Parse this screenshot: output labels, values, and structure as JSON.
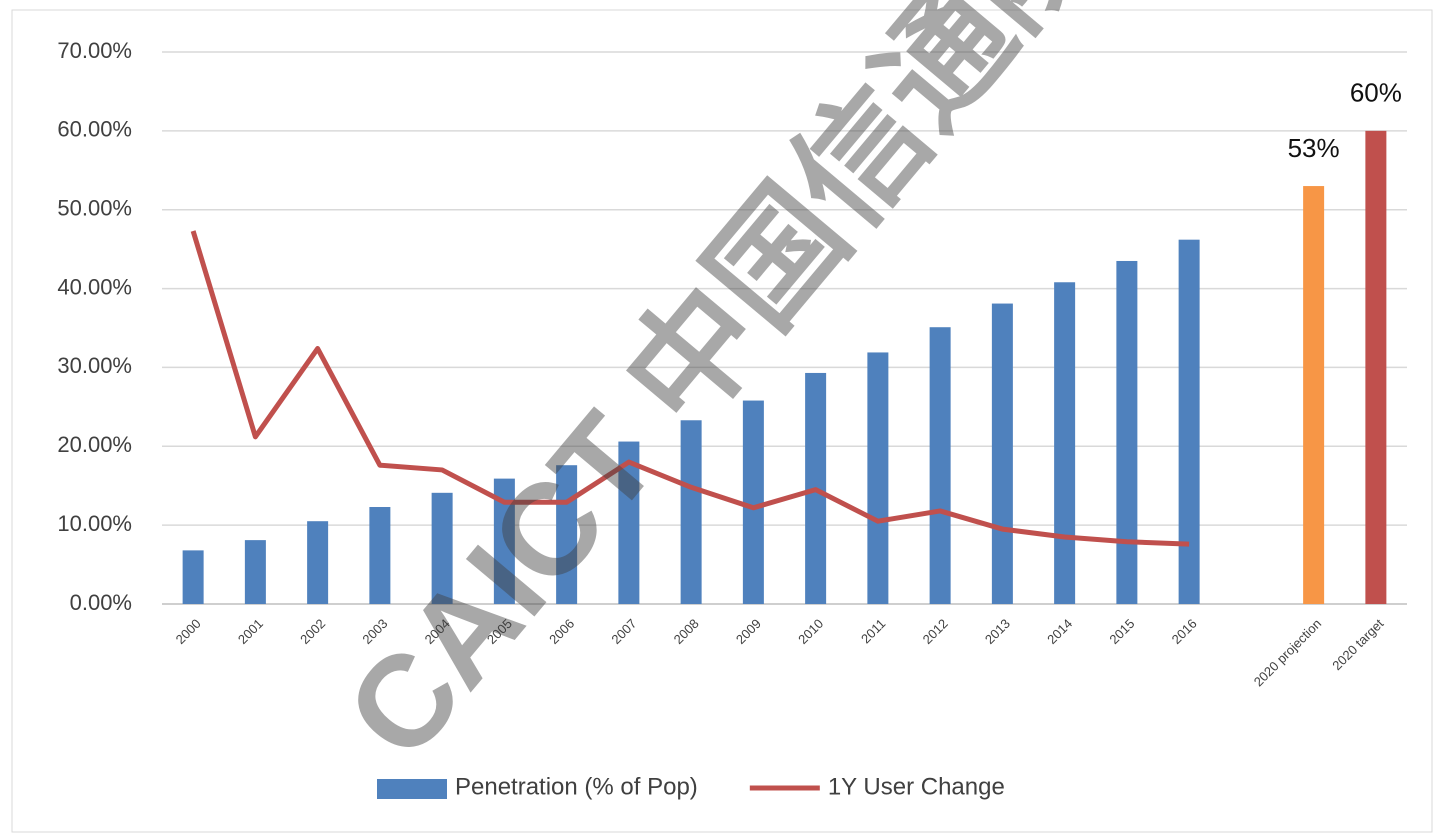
{
  "chart_data": {
    "type": "bar",
    "watermark": "CAICT 中国信通院",
    "categories": [
      "2000",
      "2001",
      "2002",
      "2003",
      "2004",
      "2005",
      "2006",
      "2007",
      "2008",
      "2009",
      "2010",
      "2011",
      "2012",
      "2013",
      "2014",
      "2015",
      "2016",
      null,
      "2020 projection",
      "2020 target"
    ],
    "series": [
      {
        "name": "Penetration (% of Pop)",
        "type": "bar",
        "color": "#4f81bd",
        "point_colors": [
          null,
          null,
          null,
          null,
          null,
          null,
          null,
          null,
          null,
          null,
          null,
          null,
          null,
          null,
          null,
          null,
          null,
          null,
          "#f79646",
          "#c0504d"
        ],
        "values": [
          6.8,
          8.1,
          10.5,
          12.3,
          14.1,
          15.9,
          17.6,
          20.6,
          23.3,
          25.8,
          29.3,
          31.9,
          35.1,
          38.1,
          40.8,
          43.5,
          46.2,
          null,
          53,
          60
        ],
        "value_labels": [
          null,
          null,
          null,
          null,
          null,
          null,
          null,
          null,
          null,
          null,
          null,
          null,
          null,
          null,
          null,
          null,
          null,
          null,
          "53%",
          "60%"
        ]
      },
      {
        "name": "1Y User Change",
        "type": "line",
        "color": "#c0504d",
        "values": [
          47.3,
          21.2,
          32.4,
          17.6,
          17.0,
          12.9,
          12.9,
          18.0,
          14.8,
          12.2,
          14.5,
          10.5,
          11.8,
          9.5,
          8.5,
          7.9,
          7.6,
          null,
          null,
          null
        ]
      }
    ],
    "ylim": [
      0,
      70
    ],
    "yticks": [
      {
        "value": 0,
        "label": "0.00%"
      },
      {
        "value": 10,
        "label": "10.00%"
      },
      {
        "value": 20,
        "label": "20.00%"
      },
      {
        "value": 30,
        "label": "30.00%"
      },
      {
        "value": 40,
        "label": "40.00%"
      },
      {
        "value": 50,
        "label": "50.00%"
      },
      {
        "value": 60,
        "label": "60.00%"
      },
      {
        "value": 70,
        "label": "70.00%"
      }
    ],
    "grid": true,
    "legend": "bottom"
  }
}
